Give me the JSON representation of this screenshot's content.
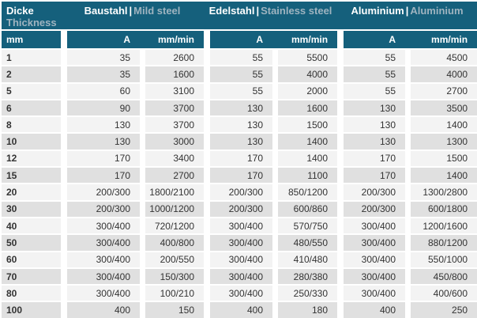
{
  "header": {
    "thickness": {
      "line1": "Dicke",
      "line2": "Thickness",
      "unit": "mm"
    },
    "divider": "|",
    "material_groups": [
      {
        "name_de": "Baustahl",
        "name_en": "Mild steel"
      },
      {
        "name_de": "Edelstahl",
        "name_en": "Stainless steel"
      },
      {
        "name_de": "Aluminium",
        "name_en": "Aluminium"
      }
    ],
    "units": {
      "amperage": "A",
      "speed": "mm/min"
    }
  },
  "chart_data": {
    "type": "table",
    "column_headers_row1": [
      "Dicke Thickness",
      "Baustahl | Mild steel",
      "Edelstahl | Stainless steel",
      "Aluminium | Aluminium"
    ],
    "column_headers_row2": [
      "mm",
      "A",
      "mm/min",
      "A",
      "mm/min",
      "A",
      "mm/min"
    ],
    "rows": [
      [
        "1",
        "35",
        "2600",
        "55",
        "5500",
        "55",
        "4500"
      ],
      [
        "2",
        "35",
        "1600",
        "55",
        "4000",
        "55",
        "4000"
      ],
      [
        "5",
        "60",
        "3100",
        "55",
        "2000",
        "55",
        "2700"
      ],
      [
        "6",
        "90",
        "3700",
        "130",
        "1600",
        "130",
        "3500"
      ],
      [
        "8",
        "130",
        "3700",
        "130",
        "1500",
        "130",
        "1400"
      ],
      [
        "10",
        "130",
        "3000",
        "130",
        "1400",
        "130",
        "1300"
      ],
      [
        "12",
        "170",
        "3400",
        "170",
        "1400",
        "170",
        "1500"
      ],
      [
        "15",
        "170",
        "2700",
        "170",
        "1100",
        "170",
        "1400"
      ],
      [
        "20",
        "200/300",
        "1800/2100",
        "200/300",
        "850/1200",
        "200/300",
        "1300/2800"
      ],
      [
        "30",
        "200/300",
        "1000/1200",
        "200/300",
        "600/860",
        "200/300",
        "600/1800"
      ],
      [
        "40",
        "300/400",
        "720/1200",
        "300/400",
        "570/750",
        "300/400",
        "1200/1600"
      ],
      [
        "50",
        "300/400",
        "400/800",
        "300/400",
        "480/550",
        "300/400",
        "880/1200"
      ],
      [
        "60",
        "300/400",
        "200/550",
        "300/400",
        "410/480",
        "300/400",
        "550/1000"
      ],
      [
        "70",
        "300/400",
        "150/300",
        "300/400",
        "280/380",
        "300/400",
        "450/800"
      ],
      [
        "80",
        "300/400",
        "100/210",
        "300/400",
        "250/330",
        "300/400",
        "400/600"
      ],
      [
        "100",
        "400",
        "150",
        "400",
        "180",
        "400",
        "250"
      ]
    ]
  },
  "colors": {
    "header_bg": "#15607C",
    "secondary_text": "#9FB4C0",
    "row_light": "#F3F3F3",
    "row_dark": "#E0E0E0",
    "body_text": "#333333",
    "separator": "#FFFFFF"
  }
}
